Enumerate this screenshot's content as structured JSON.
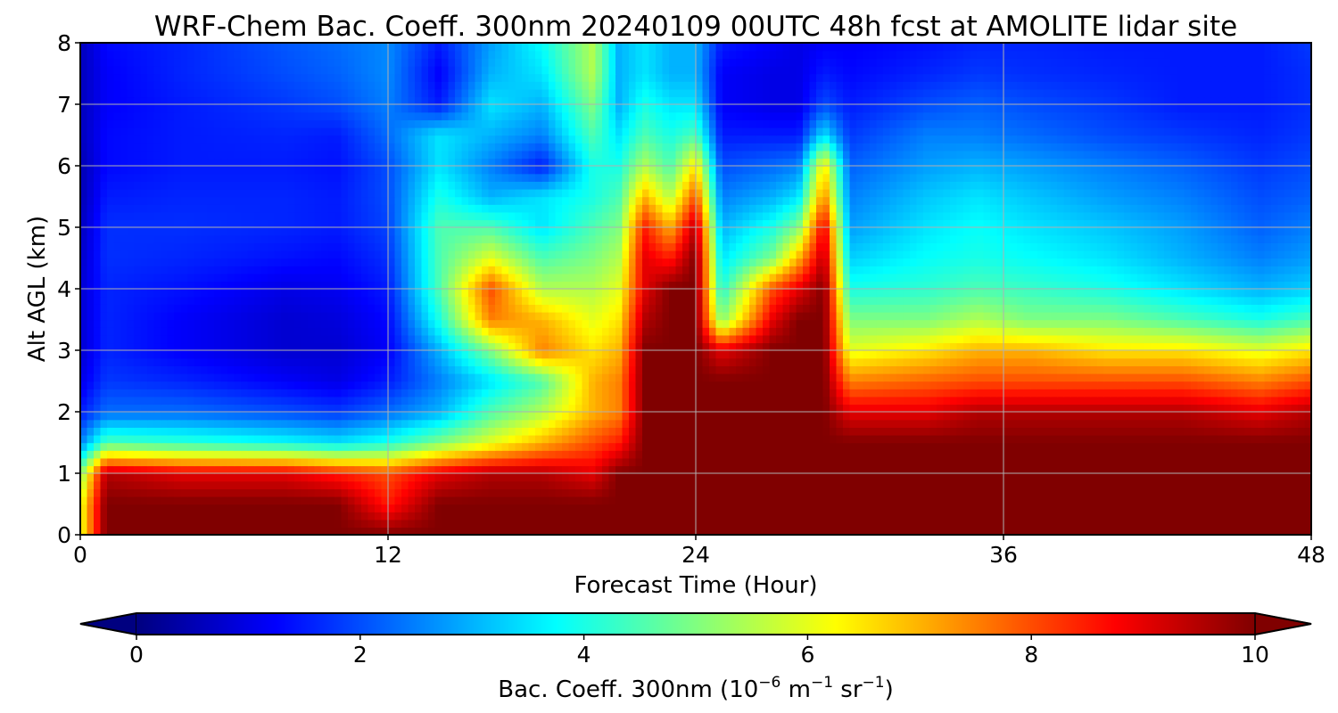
{
  "chart_data": {
    "type": "heatmap",
    "title": "WRF-Chem Bac. Coeff. 300nm  20240109 00UTC 48h fcst at AMOLITE lidar site",
    "xlabel": "Forecast Time (Hour)",
    "ylabel": "Alt AGL (km)",
    "xlim": [
      0,
      48
    ],
    "ylim": [
      0,
      8
    ],
    "x_ticks": [
      0,
      12,
      24,
      36,
      48
    ],
    "y_ticks": [
      0,
      1,
      2,
      3,
      4,
      5,
      6,
      7,
      8
    ],
    "grid": true,
    "colormap": "jet",
    "colorbar": {
      "label_main": "Bac. Coeff. 300nm  (10",
      "label_exp1": "−6",
      "label_mid": " m",
      "label_exp2": "−1",
      "label_mid2": " sr",
      "label_exp3": "−1",
      "label_end": ")",
      "range": [
        0,
        10
      ],
      "ticks": [
        0,
        2,
        4,
        6,
        8,
        10
      ],
      "extend": "both",
      "orientation": "horizontal",
      "placement": "bottom"
    },
    "x": [
      0,
      1,
      4,
      8,
      10,
      12,
      14,
      16,
      18,
      20,
      21,
      22,
      23,
      24,
      25,
      27,
      28,
      29,
      30,
      33,
      35,
      37,
      40,
      43,
      46,
      48
    ],
    "y": [
      0,
      0.5,
      1,
      1.5,
      2,
      2.5,
      3,
      3.5,
      4,
      4.5,
      5,
      5.5,
      6,
      6.5,
      7,
      7.5,
      8
    ],
    "values": [
      [
        6,
        10,
        10,
        10,
        10,
        10,
        10,
        10,
        10,
        10,
        10,
        10,
        10,
        10,
        10,
        10,
        10,
        10,
        10,
        10,
        10,
        10,
        10,
        10,
        10,
        10
      ],
      [
        6,
        10,
        10,
        10,
        10,
        8.5,
        10,
        10,
        10,
        10,
        10,
        10,
        10,
        10,
        10,
        10,
        10,
        10,
        10,
        10,
        10,
        10,
        10,
        10,
        10,
        10
      ],
      [
        5,
        9.5,
        9,
        9,
        8.5,
        8,
        9,
        9.5,
        9.5,
        9,
        10,
        10,
        10,
        10,
        10,
        10,
        10,
        10,
        10,
        10,
        10,
        10,
        10,
        10,
        10,
        10
      ],
      [
        2.5,
        4.5,
        4.2,
        3.8,
        3.5,
        4,
        5,
        6,
        7,
        8,
        8.5,
        10,
        10,
        10,
        10,
        10,
        10,
        10,
        10,
        10,
        10,
        10,
        10,
        10,
        10,
        10
      ],
      [
        1.5,
        2.3,
        2.3,
        2,
        1.8,
        2.3,
        3,
        4.5,
        5.5,
        7,
        7.5,
        10,
        10,
        10,
        10,
        10,
        10,
        10,
        9,
        9,
        9.5,
        9.5,
        9.5,
        9.5,
        9,
        9.5
      ],
      [
        1,
        1.8,
        1.6,
        1.2,
        1,
        1.5,
        2.5,
        3.5,
        4.5,
        7,
        7.5,
        10,
        10,
        10,
        10,
        10,
        10,
        10,
        7.5,
        7.8,
        8,
        8,
        8,
        8,
        7.5,
        8
      ],
      [
        0.8,
        1.6,
        1.2,
        0.8,
        0.8,
        1.2,
        3,
        5,
        7.5,
        6.5,
        7,
        10,
        10,
        10,
        9,
        10,
        10,
        10,
        6,
        6.5,
        7,
        7,
        6.5,
        6.5,
        6,
        6.5
      ],
      [
        0.8,
        1.6,
        1.2,
        0.8,
        0.9,
        1.3,
        4,
        7.5,
        7,
        6,
        6.5,
        9.5,
        10,
        10,
        5,
        9,
        10,
        10,
        5,
        5,
        5.5,
        5,
        5,
        4.5,
        4,
        4.5
      ],
      [
        0.8,
        1.6,
        1.4,
        1,
        1.1,
        1.5,
        4.5,
        8,
        5.5,
        5.5,
        6,
        9,
        10,
        10,
        4,
        8,
        9,
        10,
        4,
        4.2,
        4.5,
        4.3,
        4,
        3.5,
        3,
        3.3
      ],
      [
        0.7,
        1.7,
        1.6,
        1.4,
        1.3,
        1.7,
        4.5,
        6,
        4.5,
        5,
        5.5,
        9,
        8.5,
        10,
        3.5,
        5,
        7,
        9.5,
        3.3,
        3.8,
        4,
        3.8,
        3.5,
        3,
        2.5,
        2.8
      ],
      [
        0.6,
        1.7,
        1.7,
        1.6,
        1.5,
        1.9,
        4.5,
        4.5,
        3.5,
        4.5,
        5,
        8.5,
        7,
        9.5,
        3,
        4,
        5,
        9,
        2.8,
        3.5,
        3.8,
        3.5,
        3.2,
        2.8,
        2.2,
        2.5
      ],
      [
        0.5,
        1.5,
        1.6,
        1.6,
        1.5,
        2,
        4,
        3,
        3.5,
        4,
        4.5,
        7,
        5.5,
        8,
        2.5,
        3,
        3.5,
        7.5,
        2.5,
        3.2,
        3.5,
        3.2,
        2.8,
        2.5,
        2,
        2.2
      ],
      [
        0.5,
        1.3,
        1.5,
        1.5,
        1.4,
        2,
        3.5,
        2.5,
        1.5,
        4,
        4,
        5.5,
        4.5,
        6.5,
        2,
        2.3,
        2.5,
        6.5,
        2.2,
        2.8,
        3,
        2.8,
        2.5,
        2.2,
        1.8,
        2
      ],
      [
        0.6,
        1.3,
        1.5,
        1.6,
        1.5,
        2.3,
        3.5,
        3,
        2.5,
        4.5,
        3.5,
        4.5,
        4,
        4.5,
        1.5,
        1.5,
        1.5,
        3.5,
        1.8,
        2.5,
        2.5,
        2.3,
        2,
        1.8,
        1.6,
        1.8
      ],
      [
        0.6,
        1.2,
        1.5,
        1.8,
        2,
        2.5,
        1.5,
        3.5,
        3,
        5,
        3,
        4,
        3.5,
        3.5,
        1.2,
        1,
        1,
        2,
        1.5,
        2,
        2.2,
        2,
        1.8,
        1.5,
        1.5,
        1.7
      ],
      [
        0.6,
        1.2,
        1.6,
        2,
        2.2,
        2.6,
        1.2,
        3,
        3.5,
        5.5,
        3,
        3.5,
        3,
        3,
        1.2,
        1,
        1,
        1.5,
        1.3,
        1.6,
        1.8,
        1.7,
        1.6,
        1.5,
        1.5,
        1.7
      ],
      [
        0.6,
        1.3,
        1.6,
        2.1,
        2.3,
        2.6,
        1.5,
        2.8,
        3.8,
        5.5,
        3,
        3.5,
        3,
        3,
        1.5,
        1.2,
        1,
        1.2,
        1.2,
        1.4,
        1.6,
        1.6,
        1.5,
        1.5,
        1.5,
        1.8
      ]
    ]
  }
}
